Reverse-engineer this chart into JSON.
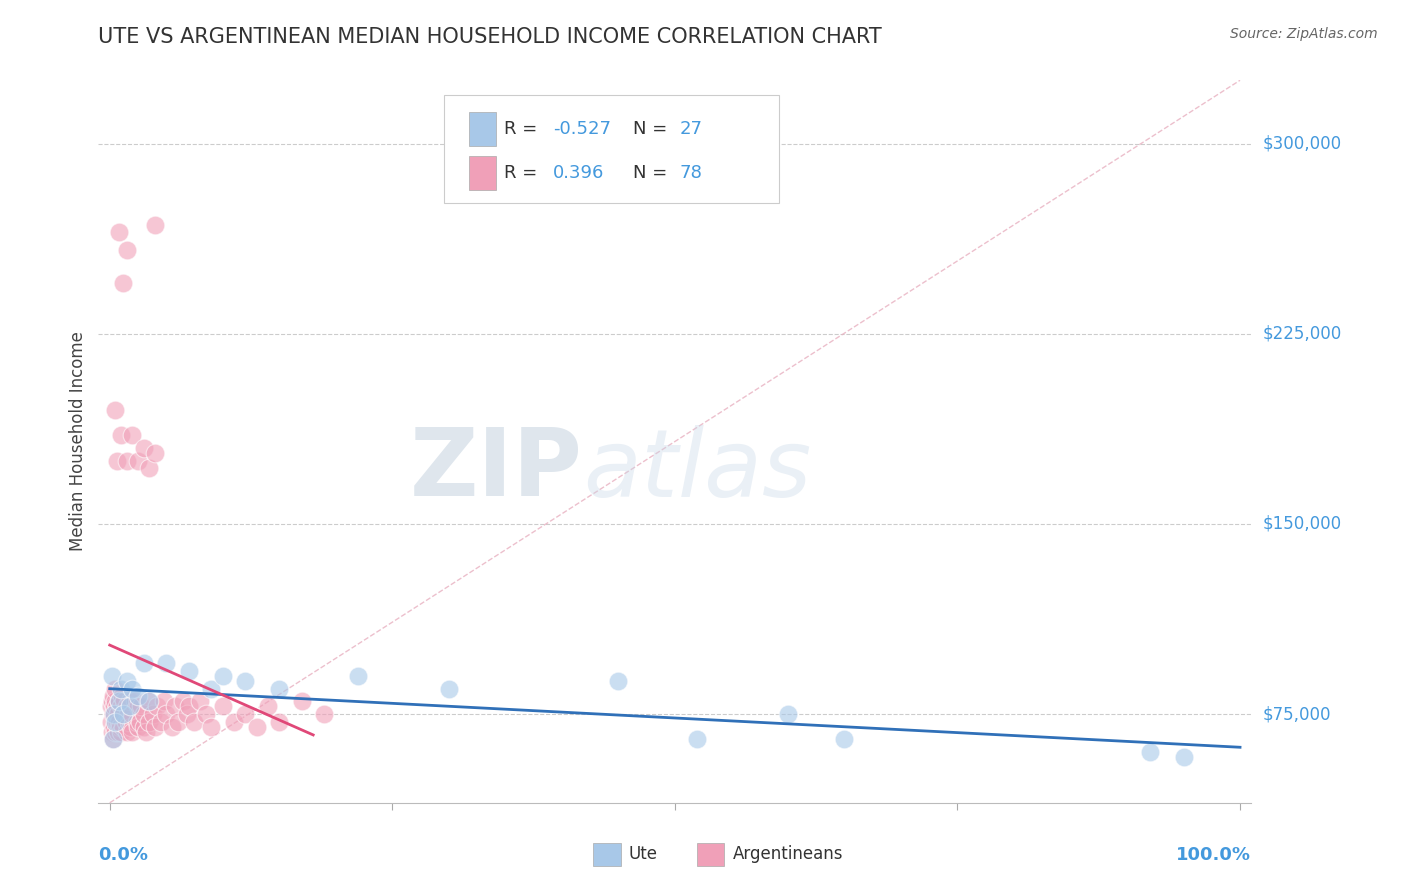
{
  "title": "UTE VS ARGENTINEAN MEDIAN HOUSEHOLD INCOME CORRELATION CHART",
  "source": "Source: ZipAtlas.com",
  "ylabel": "Median Household Income",
  "ytick_labels": [
    "$75,000",
    "$150,000",
    "$225,000",
    "$300,000"
  ],
  "ytick_values": [
    75000,
    150000,
    225000,
    300000
  ],
  "ylim": [
    40000,
    325000
  ],
  "xlim": [
    -0.01,
    1.01
  ],
  "watermark_zip": "ZIP",
  "watermark_atlas": "atlas",
  "legend_r_ute": "-0.527",
  "legend_n_ute": "27",
  "legend_r_arg": "0.396",
  "legend_n_arg": "78",
  "blue_color": "#A8C8E8",
  "pink_color": "#F0A0B8",
  "blue_line_color": "#3070B8",
  "pink_line_color": "#E04878",
  "diag_color": "#E8B0C0",
  "background_color": "#FFFFFF",
  "grid_color": "#CCCCCC",
  "title_color": "#333333",
  "axis_label_color": "#4499DD",
  "legend_text_color": "#333333",
  "r_value_color": "#4499DD",
  "n_value_color": "#4499DD"
}
